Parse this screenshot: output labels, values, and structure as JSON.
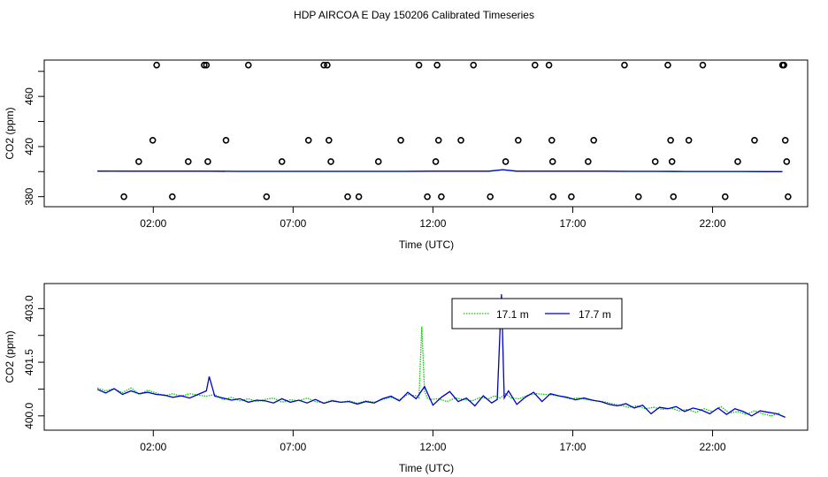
{
  "title": "HDP AIRCOA E  Day 150206  Calibrated Timeseries",
  "chart_data": [
    {
      "type": "scatter",
      "xlabel": "Time (UTC)",
      "ylabel": "CO2 (ppm)",
      "xlim": [
        -1.9,
        25.4
      ],
      "ylim": [
        372,
        489
      ],
      "xticks": [
        2,
        7,
        12,
        17,
        22
      ],
      "xtick_labels": [
        "02:00",
        "07:00",
        "12:00",
        "17:00",
        "22:00"
      ],
      "yticks": [
        380,
        420,
        460
      ],
      "ytick_labels": [
        "380",
        "420",
        "460"
      ],
      "points_x": [
        0.95,
        1.48,
        1.98,
        2.12,
        2.68,
        3.25,
        3.82,
        3.9,
        3.95,
        4.6,
        5.4,
        6.05,
        6.6,
        7.55,
        8.1,
        8.22,
        8.28,
        8.35,
        8.95,
        9.35,
        10.05,
        10.85,
        11.5,
        11.8,
        12.1,
        12.15,
        12.2,
        12.3,
        13.0,
        13.45,
        14.05,
        14.6,
        15.05,
        15.65,
        16.15,
        16.25,
        16.28,
        16.3,
        16.95,
        17.55,
        17.75,
        18.85,
        19.35,
        19.95,
        20.4,
        20.5,
        20.55,
        20.6,
        21.15,
        21.65,
        22.45,
        22.9,
        23.5,
        24.5,
        24.55,
        24.6,
        24.65,
        24.7
      ],
      "points_y": [
        380,
        408,
        425,
        485,
        380,
        408,
        485,
        485,
        408,
        425,
        485,
        380,
        408,
        425,
        485,
        485,
        425,
        408,
        380,
        380,
        408,
        425,
        485,
        380,
        408,
        485,
        425,
        380,
        425,
        485,
        380,
        408,
        425,
        485,
        485,
        425,
        408,
        380,
        380,
        408,
        425,
        485,
        380,
        408,
        485,
        425,
        408,
        380,
        425,
        485,
        380,
        408,
        425,
        485,
        485,
        425,
        408,
        380
      ],
      "series": [
        {
          "x": [
            0,
            1,
            2,
            3,
            4,
            5,
            6,
            7,
            8,
            9,
            10,
            11,
            12,
            13,
            14,
            14.5,
            15,
            16,
            17,
            18,
            19,
            20,
            21,
            22,
            23,
            24,
            24.5
          ],
          "y": [
            400.4,
            400.3,
            400.3,
            400.3,
            400.3,
            400.2,
            400.2,
            400.2,
            400.2,
            400.2,
            400.2,
            400.2,
            400.3,
            400.3,
            400.3,
            401.5,
            400.3,
            400.3,
            400.3,
            400.3,
            400.2,
            400.2,
            400.1,
            400.1,
            400.1,
            400.0,
            400.0
          ]
        },
        {
          "x": [
            0,
            1,
            2,
            3,
            4,
            5,
            6,
            7,
            8,
            9,
            10,
            11,
            12,
            13,
            14,
            14.5,
            15,
            16,
            17,
            18,
            19,
            20,
            21,
            22,
            23,
            24,
            24.5
          ],
          "y": [
            400.4,
            400.3,
            400.3,
            400.3,
            400.3,
            400.2,
            400.2,
            400.2,
            400.2,
            400.2,
            400.2,
            400.2,
            400.3,
            400.3,
            400.3,
            401.5,
            400.3,
            400.3,
            400.3,
            400.3,
            400.2,
            400.2,
            400.1,
            400.1,
            400.1,
            400.0,
            400.0
          ]
        }
      ]
    },
    {
      "type": "line",
      "xlabel": "Time (UTC)",
      "ylabel": "CO2 (ppm)",
      "xlim": [
        -1.9,
        25.4
      ],
      "ylim": [
        399.6,
        403.7
      ],
      "xticks": [
        2,
        7,
        12,
        17,
        22
      ],
      "xtick_labels": [
        "02:00",
        "07:00",
        "12:00",
        "17:00",
        "22:00"
      ],
      "yticks": [
        400.0,
        401.5,
        403.0
      ],
      "ytick_labels": [
        "400.0",
        "401.5",
        "403.0"
      ],
      "legend_position": "top-right",
      "series": [
        {
          "name": "17.1 m",
          "color": "#00cc00",
          "style": "dotted",
          "x": [
            0.0,
            0.3,
            0.6,
            0.9,
            1.2,
            1.5,
            1.8,
            2.1,
            2.4,
            2.7,
            3.0,
            3.3,
            3.6,
            3.9,
            4.2,
            4.5,
            4.8,
            5.1,
            5.4,
            5.7,
            6.0,
            6.3,
            6.6,
            6.9,
            7.2,
            7.5,
            7.8,
            8.1,
            8.4,
            8.7,
            9.0,
            9.3,
            9.6,
            9.9,
            10.2,
            10.5,
            10.8,
            11.1,
            11.4,
            11.5,
            11.6,
            11.7,
            11.8,
            11.9,
            12.2,
            12.5,
            12.8,
            13.1,
            13.4,
            13.7,
            14.0,
            14.2,
            14.4,
            14.6,
            14.8,
            15.1,
            15.4,
            15.7,
            16.0,
            16.3,
            16.6,
            16.9,
            17.2,
            17.5,
            17.8,
            18.1,
            18.4,
            18.7,
            19.0,
            19.3,
            19.6,
            19.9,
            20.2,
            20.5,
            20.8,
            21.1,
            21.4,
            21.7,
            22.0,
            22.3,
            22.6,
            22.9,
            23.2,
            23.5,
            23.8,
            24.1,
            24.4
          ],
          "y": [
            400.78,
            400.7,
            400.76,
            400.65,
            400.78,
            400.6,
            400.72,
            400.64,
            400.56,
            400.62,
            400.55,
            400.62,
            400.58,
            400.55,
            400.6,
            400.45,
            400.52,
            400.42,
            400.48,
            400.4,
            400.46,
            400.5,
            400.38,
            400.45,
            400.42,
            400.5,
            400.4,
            400.36,
            400.44,
            400.38,
            400.42,
            400.35,
            400.42,
            400.38,
            400.46,
            400.52,
            400.45,
            400.6,
            400.56,
            400.5,
            402.5,
            400.7,
            400.5,
            400.46,
            400.48,
            400.4,
            400.5,
            400.46,
            400.42,
            400.52,
            400.48,
            400.56,
            400.5,
            400.62,
            400.5,
            400.48,
            400.58,
            400.62,
            400.6,
            400.58,
            400.54,
            400.48,
            400.5,
            400.46,
            400.42,
            400.4,
            400.34,
            400.3,
            400.24,
            400.28,
            400.2,
            400.24,
            400.18,
            400.22,
            400.14,
            400.18,
            400.1,
            400.2,
            400.12,
            400.26,
            400.08,
            400.12,
            400.04,
            400.14,
            400.06,
            400.0,
            400.08
          ]
        },
        {
          "name": "17.7 m",
          "color": "#0000cc",
          "style": "solid",
          "x": [
            0.0,
            0.3,
            0.6,
            0.9,
            1.2,
            1.5,
            1.8,
            2.1,
            2.4,
            2.7,
            3.0,
            3.3,
            3.6,
            3.9,
            4.0,
            4.2,
            4.5,
            4.8,
            5.1,
            5.4,
            5.7,
            6.0,
            6.3,
            6.6,
            6.9,
            7.2,
            7.5,
            7.8,
            8.1,
            8.4,
            8.7,
            9.0,
            9.3,
            9.6,
            9.9,
            10.2,
            10.5,
            10.8,
            11.1,
            11.4,
            11.7,
            12.0,
            12.3,
            12.6,
            12.9,
            13.2,
            13.5,
            13.8,
            14.1,
            14.3,
            14.45,
            14.55,
            14.7,
            15.0,
            15.3,
            15.6,
            15.9,
            16.2,
            16.5,
            16.8,
            17.1,
            17.4,
            17.7,
            18.0,
            18.3,
            18.6,
            18.9,
            19.2,
            19.5,
            19.8,
            20.1,
            20.4,
            20.7,
            21.0,
            21.3,
            21.6,
            21.9,
            22.2,
            22.5,
            22.8,
            23.1,
            23.4,
            23.7,
            24.0,
            24.3,
            24.6
          ],
          "y": [
            400.74,
            400.64,
            400.76,
            400.6,
            400.7,
            400.62,
            400.66,
            400.6,
            400.58,
            400.52,
            400.56,
            400.5,
            400.6,
            400.7,
            401.1,
            400.55,
            400.5,
            400.44,
            400.48,
            400.38,
            400.44,
            400.42,
            400.36,
            400.48,
            400.38,
            400.44,
            400.36,
            400.46,
            400.35,
            400.42,
            400.38,
            400.4,
            400.33,
            400.4,
            400.36,
            400.48,
            400.55,
            400.42,
            400.66,
            400.48,
            400.82,
            400.3,
            400.52,
            400.68,
            400.4,
            400.5,
            400.28,
            400.56,
            400.36,
            400.46,
            403.4,
            400.5,
            400.7,
            400.32,
            400.52,
            400.66,
            400.4,
            400.62,
            400.56,
            400.52,
            400.45,
            400.5,
            400.44,
            400.4,
            400.32,
            400.28,
            400.34,
            400.22,
            400.3,
            400.06,
            400.24,
            400.2,
            400.26,
            400.12,
            400.22,
            400.16,
            400.06,
            400.22,
            400.04,
            400.2,
            400.12,
            400.0,
            400.14,
            400.1,
            400.06,
            399.96
          ]
        }
      ]
    }
  ]
}
